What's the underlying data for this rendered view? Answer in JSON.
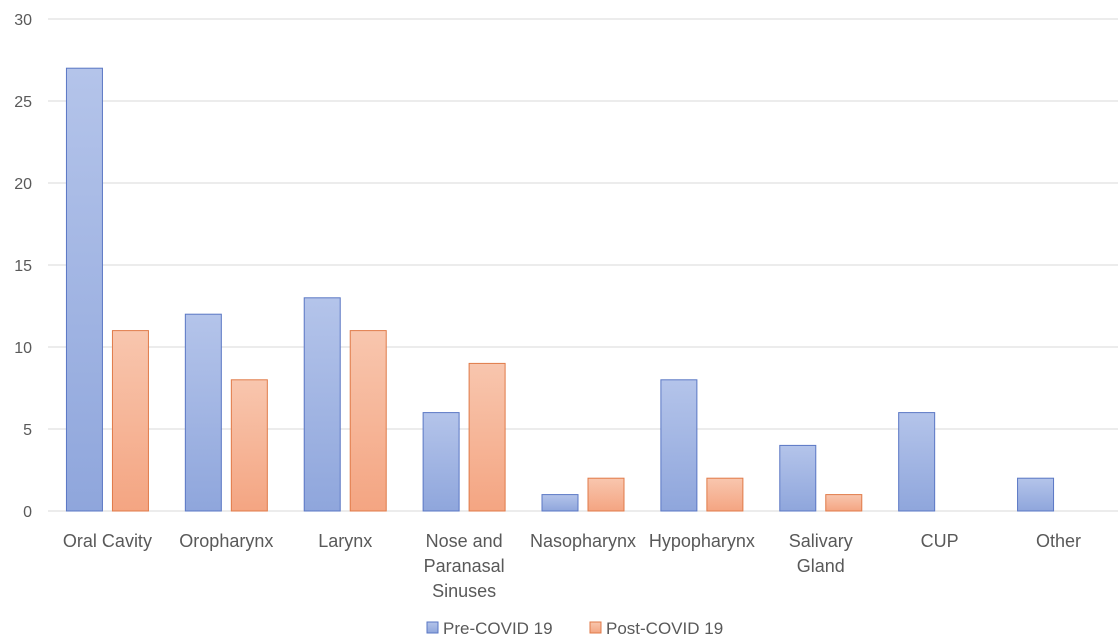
{
  "chart_data": {
    "type": "bar",
    "categories": [
      [
        "Oral Cavity"
      ],
      [
        "Oropharynx"
      ],
      [
        "Larynx"
      ],
      [
        "Nose and",
        "Paranasal",
        "Sinuses"
      ],
      [
        "Nasopharynx"
      ],
      [
        "Hypopharynx"
      ],
      [
        "Salivary",
        "Gland"
      ],
      [
        "CUP"
      ],
      [
        "Other"
      ]
    ],
    "series": [
      {
        "name": "Pre-COVID 19",
        "values": [
          27,
          12,
          13,
          6,
          1,
          8,
          4,
          6,
          2
        ],
        "color": "#8fa6dc",
        "color_light": "#b4c4ea",
        "stroke": "#5a77c4"
      },
      {
        "name": "Post-COVID 19",
        "values": [
          11,
          8,
          11,
          9,
          2,
          2,
          1,
          0,
          0
        ],
        "color": "#f4a582",
        "color_light": "#f8c6ae",
        "stroke": "#e07a48"
      }
    ],
    "y_ticks": [
      "0",
      "5",
      "10",
      "15",
      "20",
      "25",
      "30"
    ],
    "ylim": [
      0,
      30
    ],
    "grid": true,
    "legend": "bottom-center",
    "title": "",
    "xlabel": "",
    "ylabel": ""
  }
}
